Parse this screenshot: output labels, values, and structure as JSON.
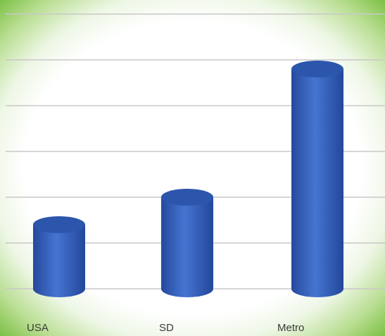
{
  "chart_data": {
    "type": "bar",
    "style": "3d-cylinder",
    "categories": [
      "USA",
      "SD",
      "Metro"
    ],
    "values": [
      1.4,
      2.0,
      4.8
    ],
    "ylim": [
      0,
      6
    ],
    "grid": true,
    "title": "",
    "xlabel": "",
    "ylabel": "",
    "colors": {
      "bar": "#3c68c3",
      "bar_dark": "#21469a",
      "bar_top": "#2c56ac",
      "grid": "#c8c8c8",
      "frame_glow": "#7cc045"
    }
  }
}
